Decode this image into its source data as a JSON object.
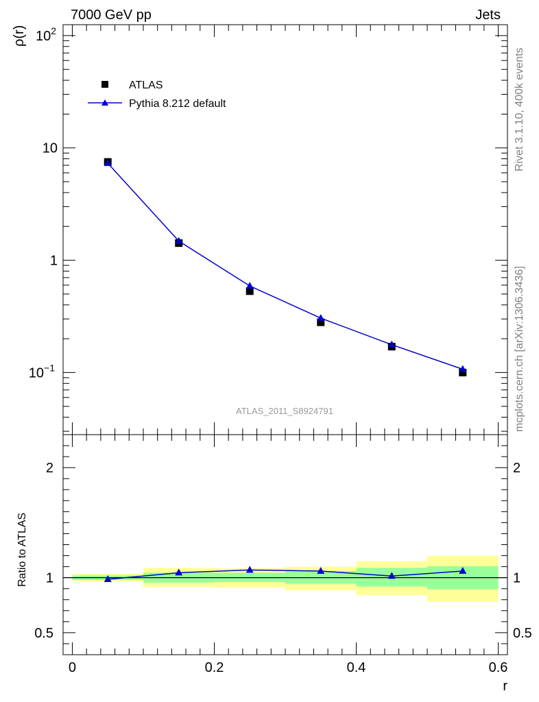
{
  "header": {
    "energy_label": "7000 GeV pp",
    "process_label": "Jets"
  },
  "side_labels": {
    "rivet": "Rivet 3.1.10,  400k events",
    "site": "mcplots.cern.ch [arXiv:1306.3436]"
  },
  "analysis_id": "ATLAS_2011_S8924791",
  "legend": {
    "data_label": "ATLAS",
    "mc_label": "Pythia 8.212 default"
  },
  "colors": {
    "data": "#000000",
    "mc": "#0000cc",
    "band_inner": "#99ff99",
    "band_outer": "#ffff99"
  },
  "chart_data": [
    {
      "type": "scatter",
      "panel": "main",
      "yscale": "log",
      "ylabel": "ρ(r)",
      "xlim": [
        -0.013,
        0.613
      ],
      "ylim": [
        0.028,
        125
      ],
      "yticks": [
        {
          "value": 100,
          "base": "10",
          "exp": "2"
        },
        {
          "value": 10,
          "text": "10"
        },
        {
          "value": 1,
          "text": "1"
        },
        {
          "value": 0.1,
          "base": "10",
          "exp": "−1"
        }
      ],
      "series": [
        {
          "name": "ATLAS",
          "kind": "data",
          "x": [
            0.05,
            0.15,
            0.25,
            0.35,
            0.45,
            0.55
          ],
          "y": [
            7.5,
            1.42,
            0.53,
            0.28,
            0.17,
            0.1
          ]
        },
        {
          "name": "Pythia 8.212 default",
          "kind": "mc",
          "x": [
            0.05,
            0.15,
            0.25,
            0.35,
            0.45,
            0.55
          ],
          "y": [
            7.3,
            1.48,
            0.59,
            0.305,
            0.177,
            0.107
          ]
        }
      ]
    },
    {
      "type": "line",
      "panel": "ratio",
      "xlabel": "r",
      "ylabel": "Ratio to ATLAS",
      "xlim": [
        -0.013,
        0.613
      ],
      "ylim": [
        0.3,
        2.3
      ],
      "xticks": [
        0,
        0.2,
        0.4,
        0.6
      ],
      "xtick_labels": [
        "0",
        "0.2",
        "0.4",
        "0.6"
      ],
      "yticks": [
        0.5,
        1,
        2
      ],
      "ytick_labels": [
        "0.5",
        "1",
        "2"
      ],
      "bins": [
        [
          0.0,
          0.1
        ],
        [
          0.1,
          0.2
        ],
        [
          0.2,
          0.3
        ],
        [
          0.3,
          0.4
        ],
        [
          0.4,
          0.5
        ],
        [
          0.5,
          0.6
        ]
      ],
      "band_inner": [
        [
          0.98,
          1.02
        ],
        [
          0.955,
          1.045
        ],
        [
          0.96,
          1.045
        ],
        [
          0.945,
          1.06
        ],
        [
          0.92,
          1.09
        ],
        [
          0.895,
          1.105
        ]
      ],
      "band_outer": [
        [
          0.965,
          1.035
        ],
        [
          0.915,
          1.09
        ],
        [
          0.91,
          1.085
        ],
        [
          0.885,
          1.1
        ],
        [
          0.84,
          1.15
        ],
        [
          0.78,
          1.2
        ]
      ],
      "series": [
        {
          "name": "Pythia 8.212 default",
          "x": [
            0.05,
            0.15,
            0.25,
            0.35,
            0.45,
            0.55
          ],
          "y": [
            0.985,
            1.045,
            1.07,
            1.06,
            1.015,
            1.06
          ]
        }
      ]
    }
  ]
}
